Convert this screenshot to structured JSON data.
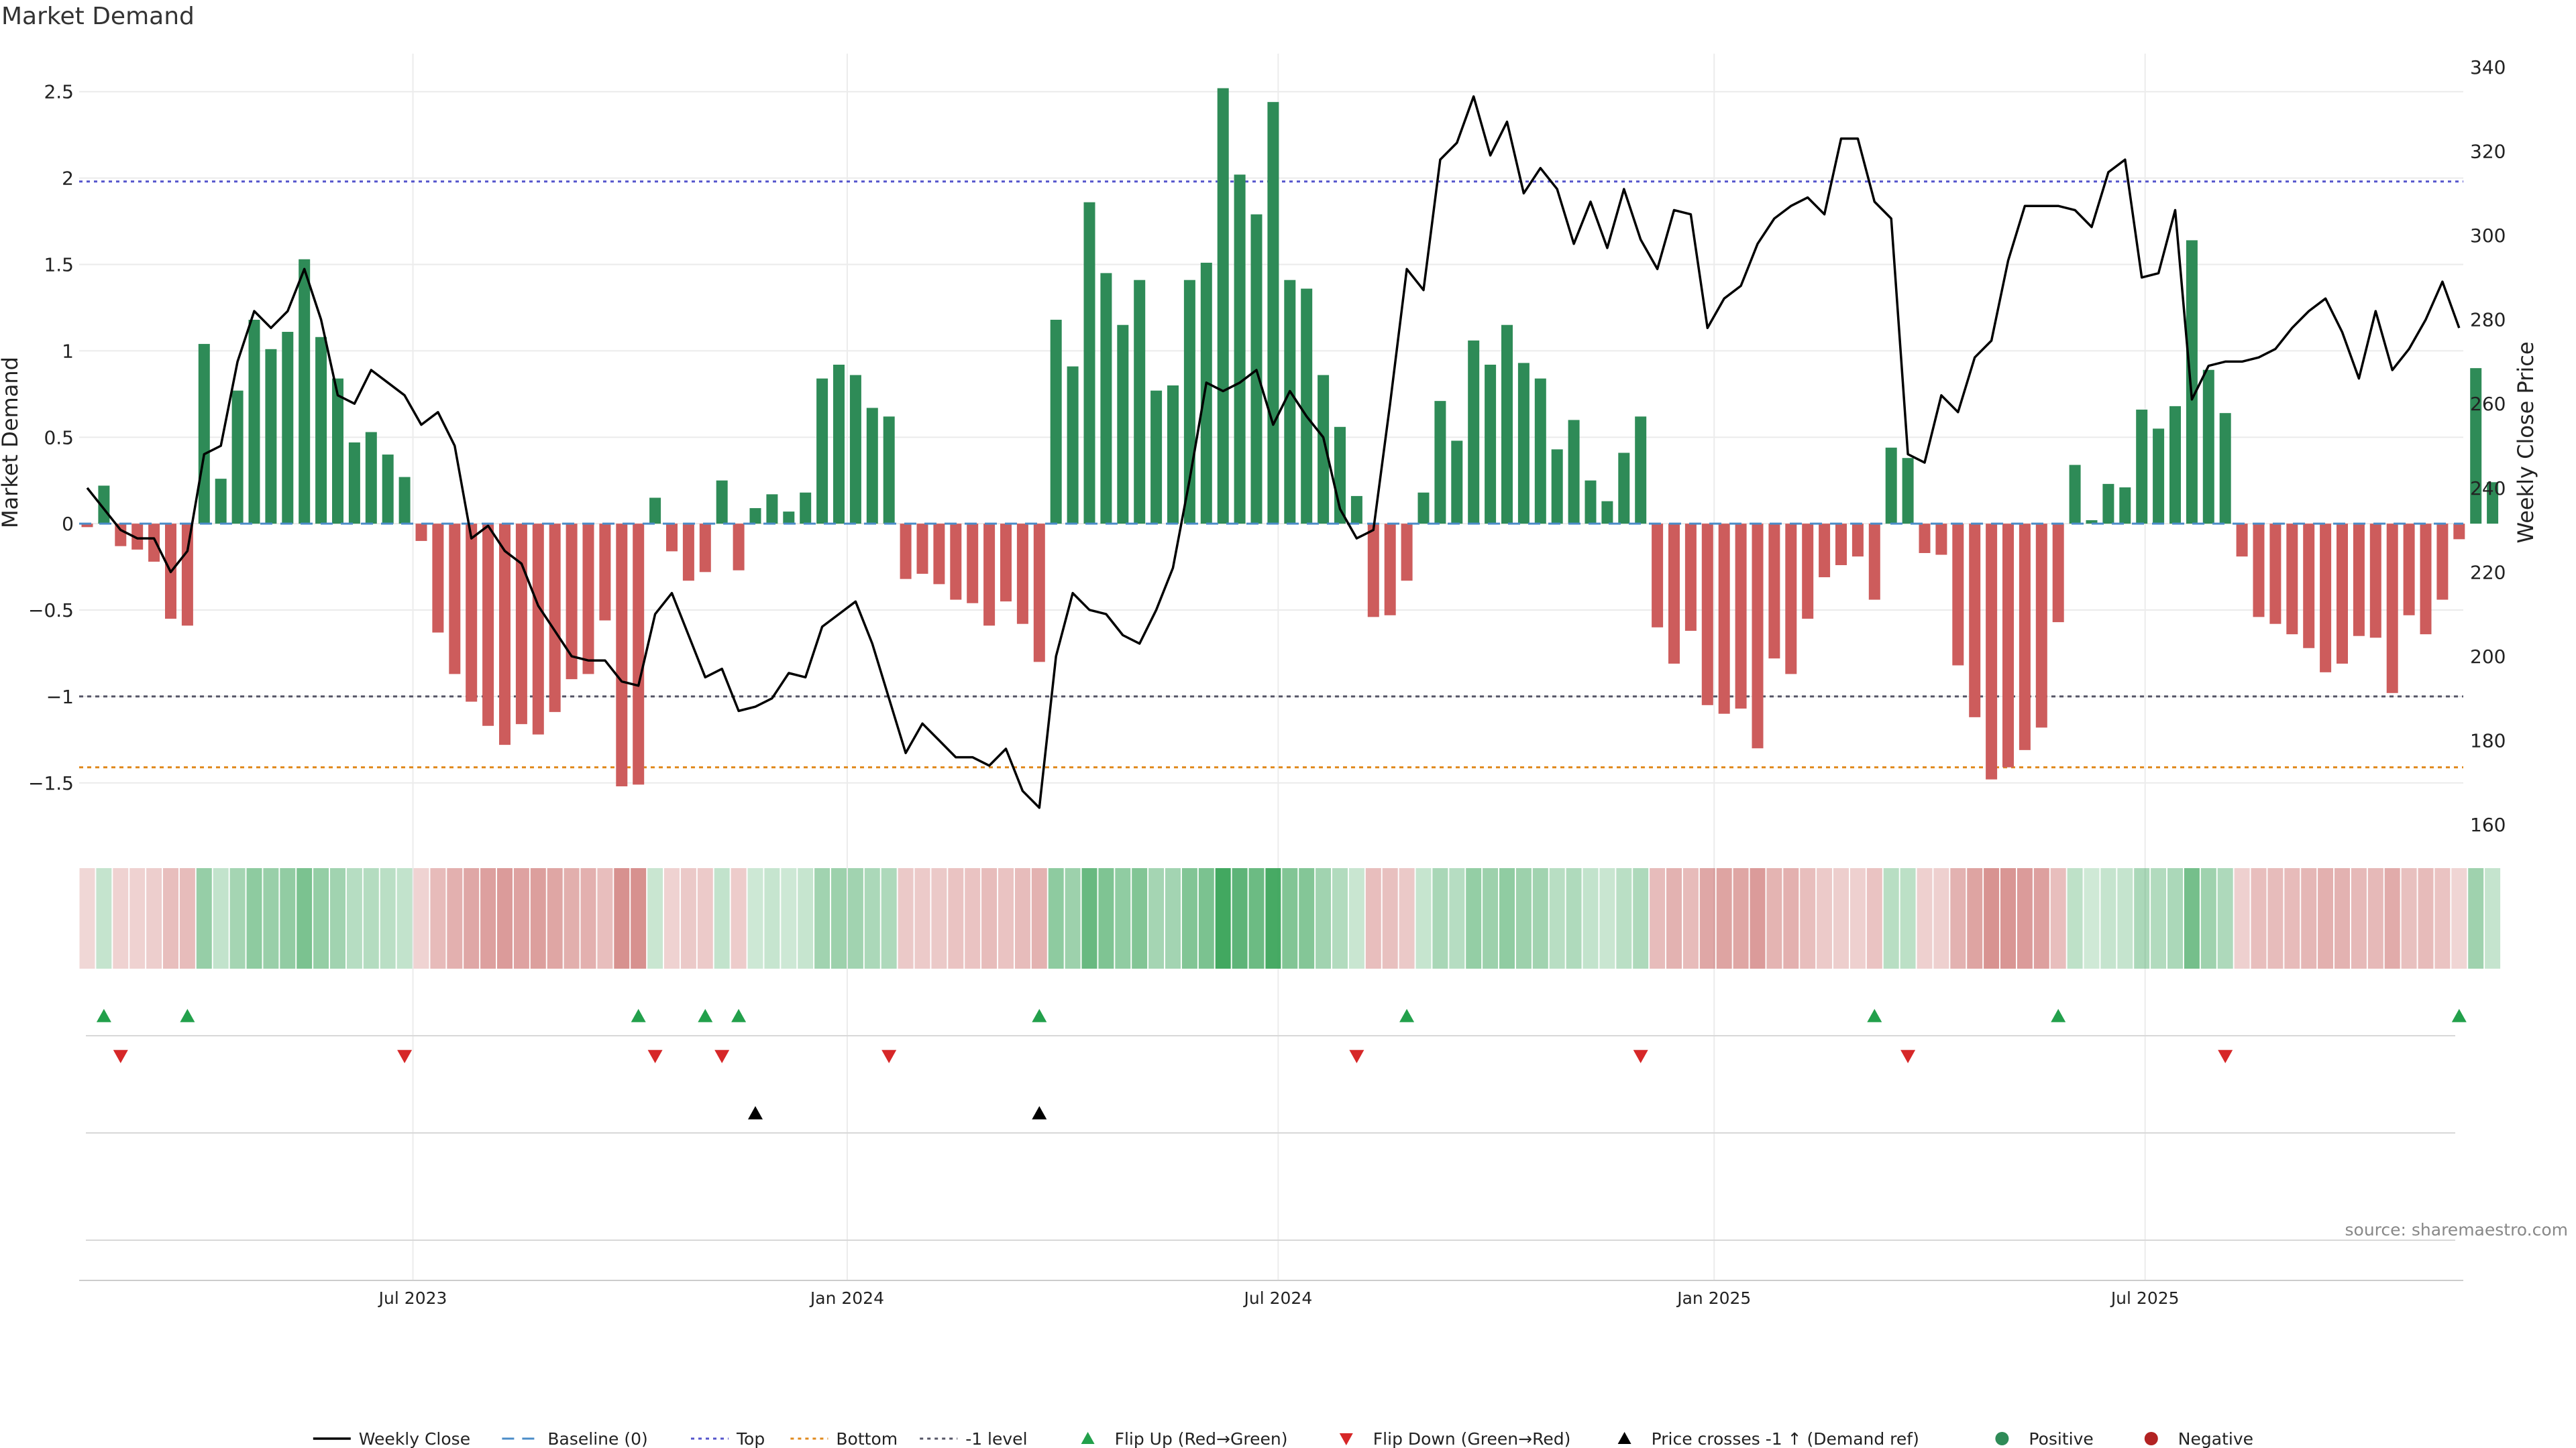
{
  "title": "Market Demand",
  "source": "source: sharemaestro.com",
  "colors": {
    "positive": "#2e8b57",
    "negative": "#cd5c5c",
    "price": "#000000",
    "top": "#5555cc",
    "bottom": "#e08a1e",
    "minus1": "#555566",
    "flip_up": "#22a04b",
    "flip_down": "#d62728"
  },
  "chart_data": {
    "type": "bar",
    "ylabel": "Market Demand",
    "ylabel_right": "Weekly Close Price",
    "ylim": [
      -1.78,
      2.72
    ],
    "ylim_right": [
      160,
      340
    ],
    "y_ticks": [
      {
        "v": 2.5,
        "label": "2.5"
      },
      {
        "v": 2,
        "label": "2"
      },
      {
        "v": 1.5,
        "label": "1.5"
      },
      {
        "v": 1,
        "label": "1"
      },
      {
        "v": 0.5,
        "label": "0.5"
      },
      {
        "v": 0,
        "label": "0"
      },
      {
        "v": -0.5,
        "label": "−0.5"
      },
      {
        "v": -1,
        "label": "−1"
      },
      {
        "v": -1.5,
        "label": "−1.5"
      }
    ],
    "y_ticks_right": [
      "160",
      "180",
      "200",
      "220",
      "240",
      "260",
      "280",
      "300",
      "320",
      "340"
    ],
    "x_ticks": [
      {
        "week": 19.5,
        "label": "Jul 2023"
      },
      {
        "week": 45.5,
        "label": "Jan 2024"
      },
      {
        "week": 71.3,
        "label": "Jul 2024"
      },
      {
        "week": 97.4,
        "label": "Jan 2025"
      },
      {
        "week": 123.2,
        "label": "Jul 2025"
      }
    ],
    "levels": {
      "top": 1.98,
      "bottom": -1.41,
      "minus1": -1.0
    },
    "series": [
      {
        "name": "Weekly Close",
        "values": [
          240,
          235,
          230,
          228,
          228,
          220,
          225,
          248,
          250,
          270,
          282,
          278,
          282,
          292,
          280,
          262,
          260,
          268,
          265,
          262,
          255,
          258,
          250,
          228,
          231,
          225,
          222,
          212,
          206,
          200,
          199,
          199,
          194,
          193,
          210,
          215,
          205,
          195,
          197,
          187,
          188,
          190,
          196,
          195,
          207,
          210,
          213,
          203,
          190,
          177,
          184,
          180,
          176,
          176,
          174,
          178,
          168,
          164,
          200,
          215,
          211,
          210,
          205,
          203,
          211,
          221,
          242,
          265,
          263,
          265,
          268,
          255,
          263,
          257,
          252,
          235,
          228,
          230,
          260,
          292,
          287,
          318,
          322,
          333,
          319,
          327,
          310,
          316,
          311,
          298,
          308,
          297,
          311,
          299,
          292,
          306,
          305,
          278,
          285,
          288,
          298,
          304,
          307,
          309,
          305,
          323,
          323,
          308,
          304,
          248,
          246,
          262,
          258,
          271,
          275,
          294,
          307,
          307,
          307,
          306,
          302,
          315,
          318,
          290,
          291,
          306,
          261,
          269,
          270,
          270,
          271,
          273,
          278,
          282,
          285,
          277,
          266,
          282,
          268,
          273,
          280,
          289,
          278
        ]
      },
      {
        "name": "Market Demand",
        "values": [
          -0.02,
          0.22,
          -0.13,
          -0.15,
          -0.22,
          -0.55,
          -0.59,
          1.04,
          0.26,
          0.77,
          1.18,
          1.01,
          1.11,
          1.53,
          1.08,
          0.84,
          0.47,
          0.53,
          0.4,
          0.27,
          -0.1,
          -0.63,
          -0.87,
          -1.03,
          -1.17,
          -1.28,
          -1.16,
          -1.22,
          -1.09,
          -0.9,
          -0.87,
          -0.56,
          -1.52,
          -1.51,
          0.15,
          -0.16,
          -0.33,
          -0.28,
          0.25,
          -0.27,
          0.09,
          0.17,
          0.07,
          0.18,
          0.84,
          0.92,
          0.86,
          0.67,
          0.62,
          -0.32,
          -0.29,
          -0.35,
          -0.44,
          -0.46,
          -0.59,
          -0.45,
          -0.58,
          -0.8,
          1.18,
          0.91,
          1.86,
          1.45,
          1.15,
          1.41,
          0.77,
          0.8,
          1.41,
          1.51,
          2.52,
          2.02,
          1.79,
          2.44,
          1.41,
          1.36,
          0.86,
          0.56,
          0.16,
          -0.54,
          -0.53,
          -0.33,
          0.18,
          0.71,
          0.48,
          1.06,
          0.92,
          1.15,
          0.93,
          0.84,
          0.43,
          0.6,
          0.25,
          0.13,
          0.41,
          0.62,
          -0.6,
          -0.81,
          -0.62,
          -1.05,
          -1.1,
          -1.07,
          -1.3,
          -0.78,
          -0.87,
          -0.55,
          -0.31,
          -0.24,
          -0.19,
          -0.44,
          0.44,
          0.38,
          -0.17,
          -0.18,
          -0.82,
          -1.12,
          -1.48,
          -1.41,
          -1.31,
          -1.18,
          -0.57,
          0.34,
          0.02,
          0.23,
          0.21,
          0.66,
          0.55,
          0.68,
          1.64,
          0.89,
          0.64,
          -0.19,
          -0.54,
          -0.58,
          -0.64,
          -0.72,
          -0.86,
          -0.81,
          -0.65,
          -0.66,
          -0.98,
          -0.53,
          -0.64,
          -0.44,
          -0.09,
          0.9,
          0.24
        ]
      }
    ],
    "flip_up_weeks": [
      1,
      6,
      33,
      37,
      39,
      57,
      79,
      107,
      118,
      142
    ],
    "flip_down_weeks": [
      2,
      19,
      34,
      38,
      48,
      76,
      93,
      109,
      128
    ],
    "price_cross_weeks": [
      40,
      57
    ],
    "legend": {
      "placement": "bottom",
      "items": [
        {
          "label": "Weekly Close",
          "kind": "line",
          "color": "#000000"
        },
        {
          "label": "Baseline (0)",
          "kind": "dash-long",
          "color": "#4b8cc8"
        },
        {
          "label": "Top",
          "kind": "dot",
          "color": "#5555cc"
        },
        {
          "label": "Bottom",
          "kind": "dot",
          "color": "#e08a1e"
        },
        {
          "label": "-1 level",
          "kind": "dot",
          "color": "#555566"
        },
        {
          "label": "Flip Up (Red→Green)",
          "kind": "tri-up",
          "color": "#22a04b"
        },
        {
          "label": "Flip Down (Green→Red)",
          "kind": "tri-down",
          "color": "#d62728"
        },
        {
          "label": "Price crosses -1 ↑ (Demand ref)",
          "kind": "tri-up",
          "color": "#000000"
        },
        {
          "label": "Positive",
          "kind": "circle",
          "color": "#2e8b57"
        },
        {
          "label": "Negative",
          "kind": "circle",
          "color": "#b22222"
        }
      ]
    }
  }
}
